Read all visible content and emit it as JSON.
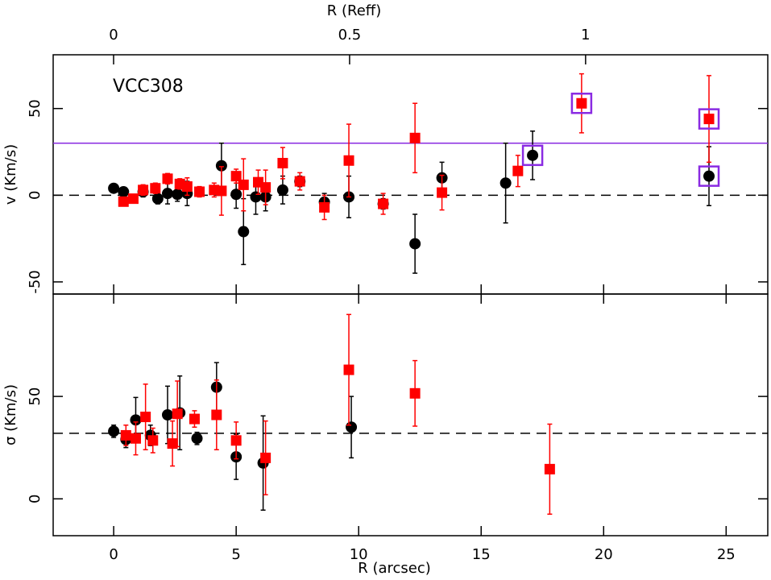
{
  "chart_data": [
    {
      "type": "scatter",
      "annotation": "VCC308",
      "ylabel": "v (Km/s)",
      "x2label": "R (Reff)",
      "xlim": [
        -2.47,
        26.7
      ],
      "xticks": [
        0,
        5,
        10,
        15,
        20,
        25
      ],
      "x2lim": [
        -0.128,
        1.386
      ],
      "x2ticks": [
        0,
        0.5,
        1
      ],
      "ylim": [
        -57,
        81
      ],
      "yticks": [
        -50,
        0,
        50
      ],
      "hlines": [
        {
          "value": 0,
          "color": "#000000",
          "dashed": true
        },
        {
          "value": 30,
          "color": "#8a2be2",
          "dashed": false
        }
      ],
      "series": [
        {
          "color": "#000000",
          "marker": "circle",
          "x": [
            0,
            0.4,
            1.2,
            1.8,
            2.2,
            2.6,
            3.0,
            4.4,
            5.0,
            5.3,
            5.8,
            6.2,
            6.9,
            7.6,
            8.6,
            9.6,
            11.0,
            12.3,
            13.4,
            16.0,
            17.1,
            24.3
          ],
          "values": [
            4,
            2,
            2,
            -2,
            1,
            0.5,
            1,
            17,
            0.5,
            -21,
            -1,
            -1,
            3,
            8,
            -4,
            -1,
            -5,
            -28,
            10,
            7,
            23,
            11
          ],
          "errors": [
            2,
            2,
            3,
            3,
            6,
            4,
            7,
            13,
            8,
            19,
            10,
            8,
            8,
            3,
            5,
            12,
            3,
            17,
            9,
            23,
            14,
            17
          ]
        },
        {
          "color": "#ff0000",
          "marker": "square",
          "x": [
            0.4,
            0.8,
            1.2,
            1.7,
            2.2,
            2.7,
            3.0,
            3.5,
            4.1,
            4.4,
            5.0,
            5.3,
            5.9,
            6.2,
            6.9,
            7.6,
            8.6,
            9.6,
            11.0,
            12.3,
            13.4,
            16.5,
            19.1,
            24.3
          ],
          "values": [
            -3.7,
            -2,
            3,
            4,
            9.5,
            6.5,
            5,
            2,
            3,
            2.5,
            11,
            6,
            7.5,
            4.5,
            18.5,
            8,
            -7,
            20,
            -5,
            33,
            1.5,
            14,
            53,
            44
          ],
          "errors": [
            2,
            2,
            3,
            3,
            3,
            3,
            5,
            3,
            4,
            14,
            4,
            15,
            7,
            10,
            9,
            5,
            7,
            21,
            6,
            20,
            10,
            9,
            17,
            25
          ]
        },
        {
          "color": "#8a2be2",
          "marker": "open-square",
          "x": [
            17.1,
            19.1,
            24.3,
            24.3
          ],
          "values": [
            23,
            53,
            44,
            11
          ]
        }
      ]
    },
    {
      "type": "scatter",
      "ylabel": "σ (Km/s)",
      "xlabel": "R (arcsec)",
      "xlim": [
        -2.47,
        26.7
      ],
      "xticks": [
        0,
        5,
        10,
        15,
        20,
        25
      ],
      "ylim": [
        -18,
        100
      ],
      "yticks": [
        0,
        50
      ],
      "hlines": [
        {
          "value": 32,
          "color": "#000000",
          "dashed": true
        }
      ],
      "series": [
        {
          "color": "#000000",
          "marker": "circle",
          "x": [
            0,
            0.5,
            0.9,
            1.5,
            2.2,
            2.7,
            3.4,
            4.2,
            5.0,
            6.1,
            9.7
          ],
          "values": [
            33,
            29,
            38.5,
            31,
            41,
            42,
            29.5,
            54.5,
            20.5,
            17.5,
            35
          ],
          "errors": [
            3,
            4,
            11,
            5,
            14,
            18,
            3,
            12,
            11,
            23,
            15
          ]
        },
        {
          "color": "#ff0000",
          "marker": "square",
          "x": [
            0.5,
            0.9,
            1.3,
            1.6,
            2.4,
            2.6,
            3.3,
            4.2,
            5.0,
            6.2,
            9.6,
            12.3,
            17.8
          ],
          "values": [
            31,
            29.5,
            40,
            28.5,
            27,
            41.5,
            39,
            41,
            28.5,
            20,
            63,
            51.5,
            14.5
          ],
          "errors": [
            5,
            8,
            16,
            6,
            11,
            16,
            4,
            17,
            9,
            18,
            27,
            16,
            22
          ]
        }
      ]
    }
  ]
}
